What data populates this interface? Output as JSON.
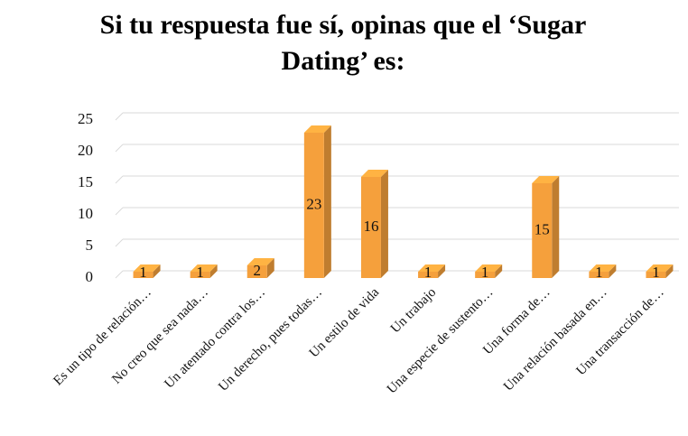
{
  "chart_data": {
    "type": "bar3d",
    "title": "Si tu respuesta fue sí, opinas que el ‘Sugar Dating’ es:",
    "categories": [
      "Es un tipo de relación…",
      "No creo que sea nada…",
      "Un atentado contra los…",
      "Un derecho, pues todas…",
      "Un estilo de vida",
      "Un trabajo",
      "Una especie de sustento…",
      "Una forma de…",
      "Una relación basada en…",
      "Una transacción de…"
    ],
    "values": [
      1,
      1,
      2,
      23,
      16,
      1,
      1,
      15,
      1,
      1
    ],
    "color": "#f5a03c",
    "ylim": [
      0,
      25
    ],
    "yticks": [
      0,
      5,
      10,
      15,
      20,
      25
    ],
    "grid": true
  }
}
